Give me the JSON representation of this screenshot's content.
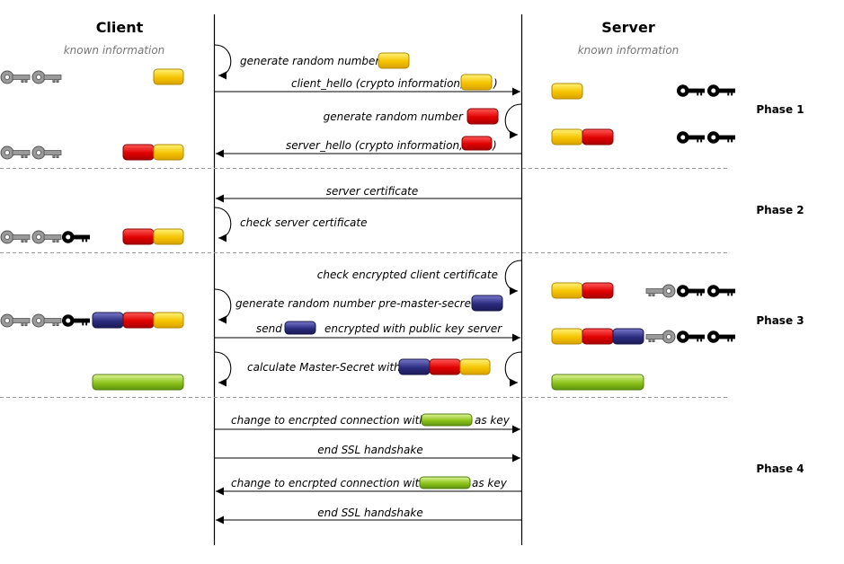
{
  "headers": {
    "client": "Client",
    "server": "Server",
    "client_known": "known information",
    "server_known": "known information"
  },
  "phases": [
    "Phase 1",
    "Phase 2",
    "Phase 3",
    "Phase 4"
  ],
  "messages": {
    "m1": "generate random number",
    "m2_a": "client_hello (crypto information,",
    "m2_b": ")",
    "m3": "generate random number",
    "m4_a": "server_hello (crypto information,",
    "m4_b": ")",
    "m5": "server certificate",
    "m6": "check server certificate",
    "m7": "check encrypted client certificate",
    "m8": "generate random number pre-master-secret",
    "m9_a": "send",
    "m9_b": "encrypted with public key server",
    "m10": "calculate Master-Secret with",
    "m11_a": "change to encrpted connection with",
    "m11_b": "as key",
    "m12": "end SSL handshake",
    "m13_a": "change to encrpted connection with",
    "m13_b": "as key",
    "m14": "end SSL handshake"
  },
  "colors": {
    "yellow": "#f5c400",
    "red": "#e00000",
    "blue": "#2c2c80",
    "green": "#8cc41a",
    "key_grey": "#9a9a9a",
    "key_black": "#000000",
    "lifeline": "#000000",
    "separator": "#999999"
  }
}
